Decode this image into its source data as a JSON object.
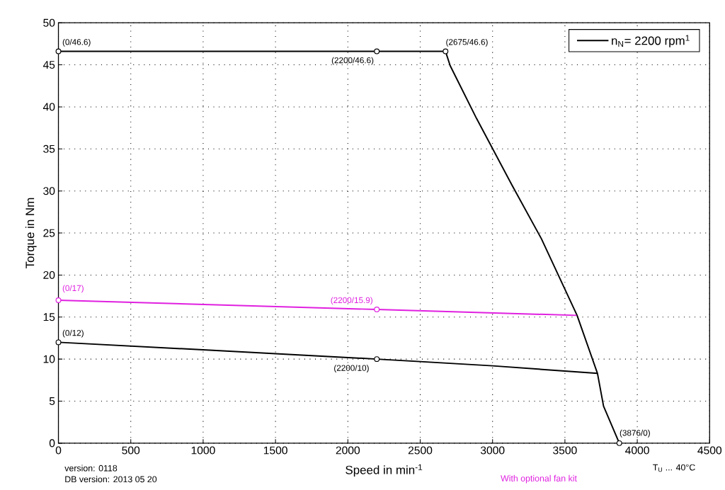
{
  "chart_data": {
    "type": "line",
    "xlabel": "Speed in min$^{-1}$",
    "ylabel": "Torque in Nm",
    "xlim": [
      0,
      4500
    ],
    "ylim": [
      0,
      50
    ],
    "xticks": [
      0,
      500,
      1000,
      1500,
      2000,
      2500,
      3000,
      3500,
      4000,
      4500
    ],
    "yticks": [
      0,
      5,
      10,
      15,
      20,
      25,
      30,
      35,
      40,
      45,
      50
    ],
    "grid": true,
    "legend": "top right",
    "series": [
      {
        "name": "n$_{N}$= 2200 rpm$^{1}$",
        "color": "#000000",
        "marker": "none",
        "x": [
          0,
          2200,
          2675,
          2707,
          2890,
          3137,
          3338,
          3584,
          3725,
          3767,
          3876
        ],
        "values": [
          46.6,
          46.6,
          46.6,
          44.9,
          38.6,
          30.6,
          24.3,
          15.2,
          8.3,
          4.4,
          0
        ]
      },
      {
        "color": "#000000",
        "marker": "none",
        "x": [
          0,
          1000,
          2200,
          3000,
          3725
        ],
        "values": [
          12,
          11.1,
          10,
          9.2,
          8.3
        ]
      },
      {
        "color": "#e020e0",
        "marker": "none",
        "x": [
          0,
          2200,
          3580
        ],
        "values": [
          17,
          15.9,
          15.2
        ]
      },
      {
        "color": "#000000",
        "type": "scatter",
        "marker": "circle",
        "x": [
          0,
          2200,
          2675,
          0,
          2200,
          3876
        ],
        "values": [
          46.6,
          46.6,
          46.6,
          12,
          10,
          0
        ]
      },
      {
        "color": "#e020e0",
        "type": "scatter",
        "marker": "circle",
        "x": [
          0,
          2200
        ],
        "values": [
          17,
          15.9
        ]
      }
    ],
    "annotations": [
      {
        "text": "(0/46.6)",
        "x": 0,
        "y": 46.6
      },
      {
        "text": "(2200/46.6)",
        "x": 2200,
        "y": 46.6
      },
      {
        "text": "(2675/46.6)",
        "x": 2675,
        "y": 46.6
      },
      {
        "text": "(0/17)",
        "x": 0,
        "y": 17
      },
      {
        "text": "(2200/15.9)",
        "x": 2200,
        "y": 15.9
      },
      {
        "text": "(0/12)",
        "x": 0,
        "y": 12
      },
      {
        "text": "(2200/10)",
        "x": 2200,
        "y": 10
      },
      {
        "text": "(3876/0)",
        "x": 3876,
        "y": 0
      },
      "version: 0118",
      "DB version: 2013 05 20",
      "T$_{U}$ ... 40°C",
      "With optional fan kit"
    ]
  }
}
